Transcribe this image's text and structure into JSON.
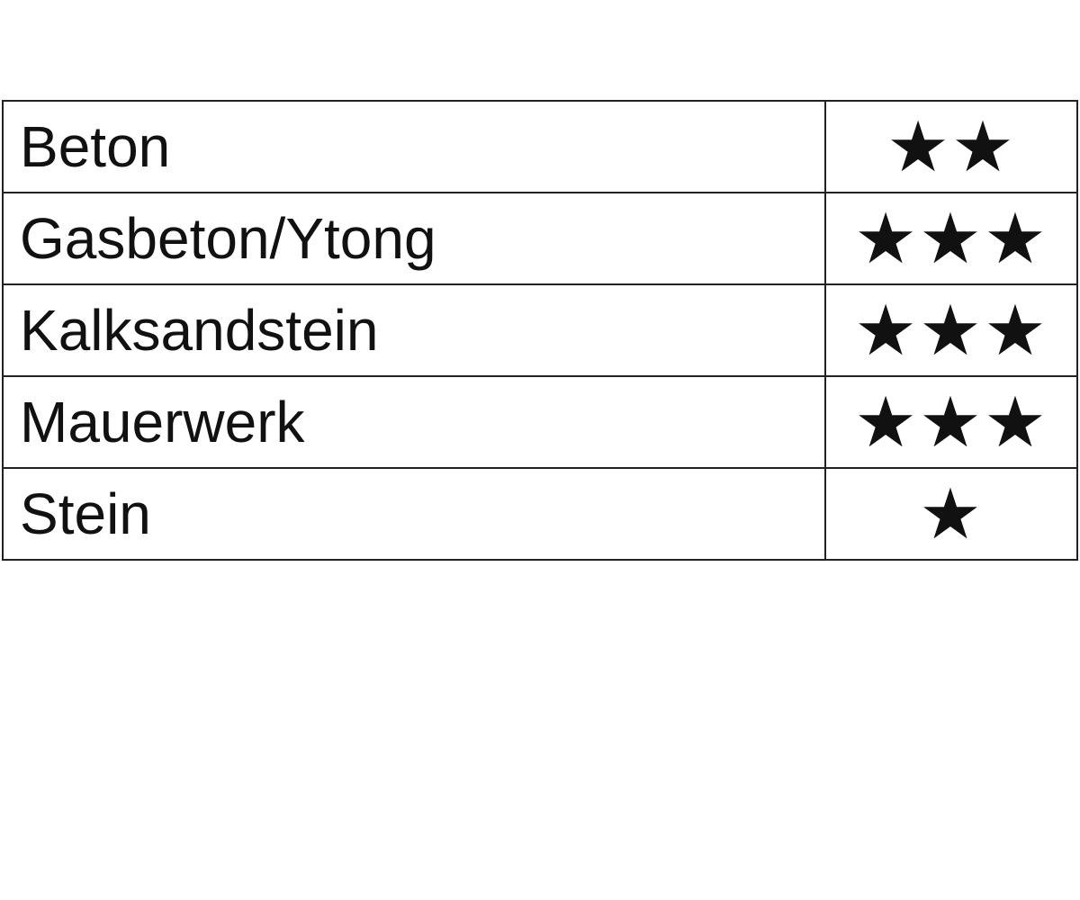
{
  "table": {
    "star_symbol": "★",
    "rows": [
      {
        "material": "Beton",
        "stars": 2
      },
      {
        "material": "Gasbeton/Ytong",
        "stars": 3
      },
      {
        "material": "Kalksandstein",
        "stars": 3
      },
      {
        "material": "Mauerwerk",
        "stars": 3
      },
      {
        "material": "Stein",
        "stars": 1
      }
    ]
  }
}
